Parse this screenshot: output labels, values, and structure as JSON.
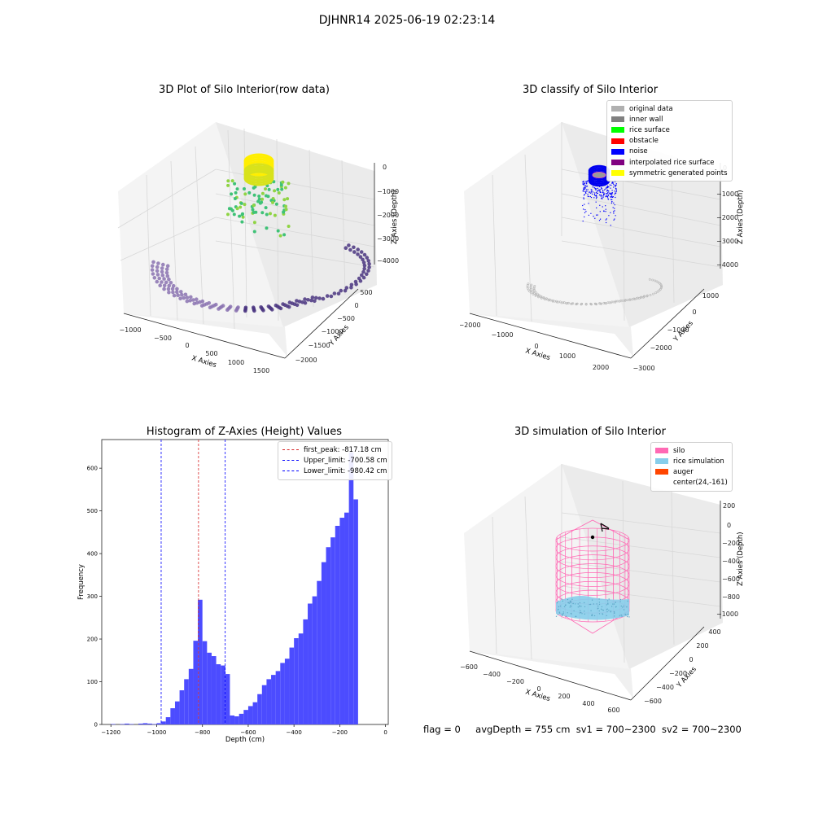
{
  "figure_title": "DJHNR14 2025-06-19 02:23:14",
  "footer": {
    "flag": "flag = 0",
    "avg_depth": "avgDepth = 755 cm",
    "sv1": "sv1 = 700~2300",
    "sv2": "sv2 = 700~2300"
  },
  "colors": {
    "hist_bar": "#4c4cff",
    "peak_line": "#d62728",
    "limit_line": "#0000ff",
    "raw_points": "#5b3f8c",
    "surface_yellow": "#ffff00",
    "surface_green": "#3fc277",
    "silo": "#ff69b4",
    "rice": "#87ceeb",
    "auger": "#ff4500"
  },
  "chart_data": [
    {
      "type": "scatter",
      "projection": "3d",
      "title": "3D Plot of Silo Interior(row data)",
      "xlabel": "X Axies",
      "ylabel": "Y Axies",
      "zlabel": "Z Axies (Depth)",
      "x_ticks": [
        "−1000",
        "−500",
        "0",
        "500",
        "1000",
        "1500"
      ],
      "y_ticks": [
        "500",
        "0",
        "−500",
        "−1000",
        "−1500",
        "−2000"
      ],
      "z_ticks": [
        "0",
        "−1000",
        "−2000",
        "−3000",
        "−4000"
      ],
      "series": [
        {
          "color_scale": "viridis",
          "description_values": {
            "x_range": [
              -1300,
              1700
            ],
            "y_range": [
              -2200,
              700
            ],
            "z_range": [
              -4200,
              0
            ]
          }
        }
      ]
    },
    {
      "type": "scatter",
      "projection": "3d",
      "title": "3D classify of Silo Interior",
      "xlabel": "X Axies",
      "ylabel": "Y Axies",
      "zlabel": "Z Axies (Depth)",
      "x_ticks": [
        "−2000",
        "−1000",
        "0",
        "1000",
        "2000"
      ],
      "y_ticks": [
        "1000",
        "0",
        "−1000",
        "−2000",
        "−3000"
      ],
      "z_ticks": [
        "0",
        "−1000",
        "−2000",
        "−3000",
        "−4000"
      ],
      "legend_position": "upper-right",
      "legend": [
        {
          "label": "original data",
          "color": "#b0b0b0"
        },
        {
          "label": "inner wall",
          "color": "#808080"
        },
        {
          "label": "rice surface",
          "color": "#00ff00"
        },
        {
          "label": "obstacle",
          "color": "#ff0000"
        },
        {
          "label": "noise",
          "color": "#0000ff"
        },
        {
          "label": "interpolated rice surface",
          "color": "#800080"
        },
        {
          "label": "symmetric generated points",
          "color": "#ffff00"
        }
      ]
    },
    {
      "type": "bar",
      "title": "Histogram of Z-Axies (Height) Values",
      "xlabel": "Depth (cm)",
      "ylabel": "Frequency",
      "xlim": [
        -1240,
        12
      ],
      "ylim": [
        0,
        667
      ],
      "x_ticks": [
        "−1200",
        "−1000",
        "−800",
        "−600",
        "−400",
        "−200",
        "0"
      ],
      "y_ticks": [
        "0",
        "100",
        "200",
        "300",
        "400",
        "500",
        "600"
      ],
      "bin_width": 20,
      "bin_start": -1200,
      "values": [
        1,
        0,
        1,
        2,
        1,
        0,
        2,
        3,
        2,
        1,
        3,
        7,
        17,
        38,
        54,
        80,
        106,
        130,
        196,
        292,
        195,
        168,
        160,
        141,
        138,
        118,
        21,
        19,
        25,
        34,
        43,
        52,
        71,
        92,
        106,
        116,
        125,
        144,
        154,
        180,
        202,
        213,
        246,
        283,
        300,
        336,
        380,
        415,
        438,
        465,
        484,
        496,
        637,
        527
      ],
      "vlines": [
        {
          "label": "first_peak: -817.18 cm",
          "x": -817.18,
          "color": "#d62728"
        },
        {
          "label": "Upper_limit: -700.58 cm",
          "x": -700.58,
          "color": "#0000ff"
        },
        {
          "label": "Lower_limit: -980.42 cm",
          "x": -980.42,
          "color": "#0000ff"
        }
      ],
      "legend_position": "upper-right"
    },
    {
      "type": "scatter",
      "projection": "3d",
      "title": "3D simulation of Silo Interior",
      "xlabel": "X Axies",
      "ylabel": "Y Axies",
      "zlabel": "Z Axies (Depth)",
      "x_ticks": [
        "−600",
        "−400",
        "−200",
        "0",
        "200",
        "400",
        "600"
      ],
      "y_ticks": [
        "400",
        "200",
        "0",
        "−200",
        "−400",
        "−600"
      ],
      "z_ticks": [
        "200",
        "0",
        "−200",
        "−400",
        "−600",
        "−800",
        "−1000"
      ],
      "legend_position": "upper-right",
      "legend": [
        {
          "label": "silo",
          "color": "#ff69b4"
        },
        {
          "label": "rice simulation",
          "color": "#87ceeb"
        },
        {
          "label": "auger",
          "color": "#ff4500"
        },
        {
          "label": "center(24,-161)",
          "color": ""
        }
      ]
    }
  ]
}
